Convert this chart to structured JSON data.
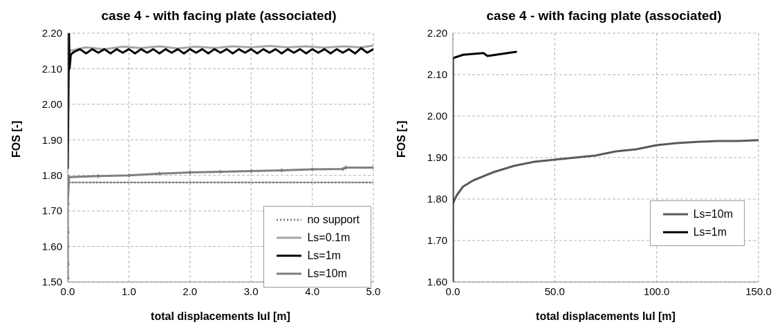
{
  "chart_data": [
    {
      "type": "line",
      "title": "case 4 - with facing plate (associated)",
      "xlabel": "total displacements  IuI [m]",
      "ylabel": "FOS [-]",
      "xlim": [
        0,
        5
      ],
      "ylim": [
        1.5,
        2.2
      ],
      "xticks": [
        {
          "value": 0,
          "label": "0.0"
        },
        {
          "value": 1,
          "label": "1.0"
        },
        {
          "value": 2,
          "label": "2.0"
        },
        {
          "value": 3,
          "label": "3.0"
        },
        {
          "value": 4,
          "label": "4.0"
        },
        {
          "value": 5,
          "label": "5.0"
        }
      ],
      "yticks": [
        {
          "value": 1.5,
          "label": "1.50"
        },
        {
          "value": 1.6,
          "label": "1.60"
        },
        {
          "value": 1.7,
          "label": "1.70"
        },
        {
          "value": 1.8,
          "label": "1.80"
        },
        {
          "value": 1.9,
          "label": "1.90"
        },
        {
          "value": 2.0,
          "label": "2.00"
        },
        {
          "value": 2.1,
          "label": "2.10"
        },
        {
          "value": 2.2,
          "label": "2.20"
        }
      ],
      "grid": true,
      "legend": "bottom right",
      "series": [
        {
          "name": "no support",
          "color": "#808080",
          "line_style": "dotted",
          "x": [
            0,
            0.02,
            0.5,
            1,
            1.5,
            2,
            2.5,
            3,
            3.5,
            4,
            4.5,
            5
          ],
          "values": [
            1.8,
            1.78,
            1.78,
            1.78,
            1.78,
            1.78,
            1.78,
            1.78,
            1.78,
            1.78,
            1.78,
            1.78
          ]
        },
        {
          "name": "Ls=0.1m",
          "color": "#a6a6a6",
          "x": [
            0.02,
            0.3,
            0.6,
            0.9,
            1.2,
            1.5,
            1.8,
            2.1,
            2.4,
            2.7,
            3,
            3.3,
            3.6,
            3.9,
            4.2,
            4.5,
            4.8,
            5
          ],
          "values": [
            2.15,
            2.16,
            2.155,
            2.162,
            2.158,
            2.163,
            2.157,
            2.162,
            2.158,
            2.163,
            2.16,
            2.164,
            2.16,
            2.163,
            2.159,
            2.163,
            2.16,
            2.165
          ]
        },
        {
          "name": "Ls=1m",
          "color": "#000000",
          "x": [
            0,
            0.02,
            0.03,
            0.05,
            0.1,
            0.2,
            0.3,
            0.4,
            0.5,
            0.6,
            0.7,
            0.8,
            0.9,
            1,
            1.1,
            1.2,
            1.3,
            1.4,
            1.5,
            1.6,
            1.7,
            1.8,
            1.9,
            2,
            2.1,
            2.2,
            2.3,
            2.4,
            2.5,
            2.6,
            2.7,
            2.8,
            2.9,
            3,
            3.1,
            3.2,
            3.3,
            3.4,
            3.5,
            3.6,
            3.7,
            3.8,
            3.9,
            4,
            4.1,
            4.2,
            4.3,
            4.4,
            4.5,
            4.6,
            4.7,
            4.8,
            4.9,
            5
          ],
          "values": [
            1.82,
            2.2,
            2.1,
            2.14,
            2.147,
            2.155,
            2.143,
            2.155,
            2.145,
            2.155,
            2.143,
            2.155,
            2.145,
            2.155,
            2.143,
            2.155,
            2.145,
            2.155,
            2.143,
            2.155,
            2.145,
            2.155,
            2.143,
            2.155,
            2.145,
            2.155,
            2.143,
            2.155,
            2.145,
            2.155,
            2.143,
            2.155,
            2.145,
            2.155,
            2.143,
            2.155,
            2.145,
            2.155,
            2.143,
            2.155,
            2.145,
            2.155,
            2.143,
            2.155,
            2.145,
            2.155,
            2.143,
            2.155,
            2.145,
            2.155,
            2.143,
            2.158,
            2.145,
            2.155
          ]
        },
        {
          "name": "Ls=10m",
          "color": "#7f7f7f",
          "marker": "diamond",
          "x": [
            0,
            0,
            0,
            0,
            0,
            0.02,
            0.5,
            1,
            1.5,
            2,
            2.5,
            3,
            3.5,
            4,
            4.5,
            4.55,
            5
          ],
          "values": [
            1.51,
            1.55,
            1.6,
            1.64,
            1.72,
            1.795,
            1.798,
            1.8,
            1.805,
            1.808,
            1.81,
            1.812,
            1.814,
            1.817,
            1.818,
            1.822,
            1.822
          ]
        }
      ]
    },
    {
      "type": "line",
      "title": "case 4 - with facing plate (associated)",
      "xlabel": "total displacements  IuI [m]",
      "ylabel": "FOS [-]",
      "xlim": [
        0,
        150
      ],
      "ylim": [
        1.6,
        2.2
      ],
      "xticks": [
        {
          "value": 0,
          "label": "0.0"
        },
        {
          "value": 50,
          "label": "50.0"
        },
        {
          "value": 100,
          "label": "100.0"
        },
        {
          "value": 150,
          "label": "150.0"
        }
      ],
      "yticks": [
        {
          "value": 1.6,
          "label": "1.60"
        },
        {
          "value": 1.7,
          "label": "1.70"
        },
        {
          "value": 1.8,
          "label": "1.80"
        },
        {
          "value": 1.9,
          "label": "1.90"
        },
        {
          "value": 2.0,
          "label": "2.00"
        },
        {
          "value": 2.1,
          "label": "2.10"
        },
        {
          "value": 2.2,
          "label": "2.20"
        }
      ],
      "grid": true,
      "legend": "right",
      "series": [
        {
          "name": "Ls=10m",
          "color": "#595959",
          "x": [
            0,
            2,
            5,
            10,
            20,
            30,
            40,
            50,
            60,
            70,
            80,
            90,
            100,
            110,
            120,
            130,
            140,
            150
          ],
          "values": [
            1.79,
            1.81,
            1.83,
            1.845,
            1.865,
            1.88,
            1.89,
            1.895,
            1.9,
            1.905,
            1.915,
            1.92,
            1.93,
            1.935,
            1.938,
            1.94,
            1.94,
            1.942
          ]
        },
        {
          "name": "Ls=1m",
          "color": "#000000",
          "x": [
            0,
            0,
            5,
            10,
            15,
            17,
            24,
            31
          ],
          "values": [
            1.6,
            2.14,
            2.148,
            2.15,
            2.152,
            2.145,
            2.15,
            2.155
          ]
        }
      ]
    }
  ]
}
